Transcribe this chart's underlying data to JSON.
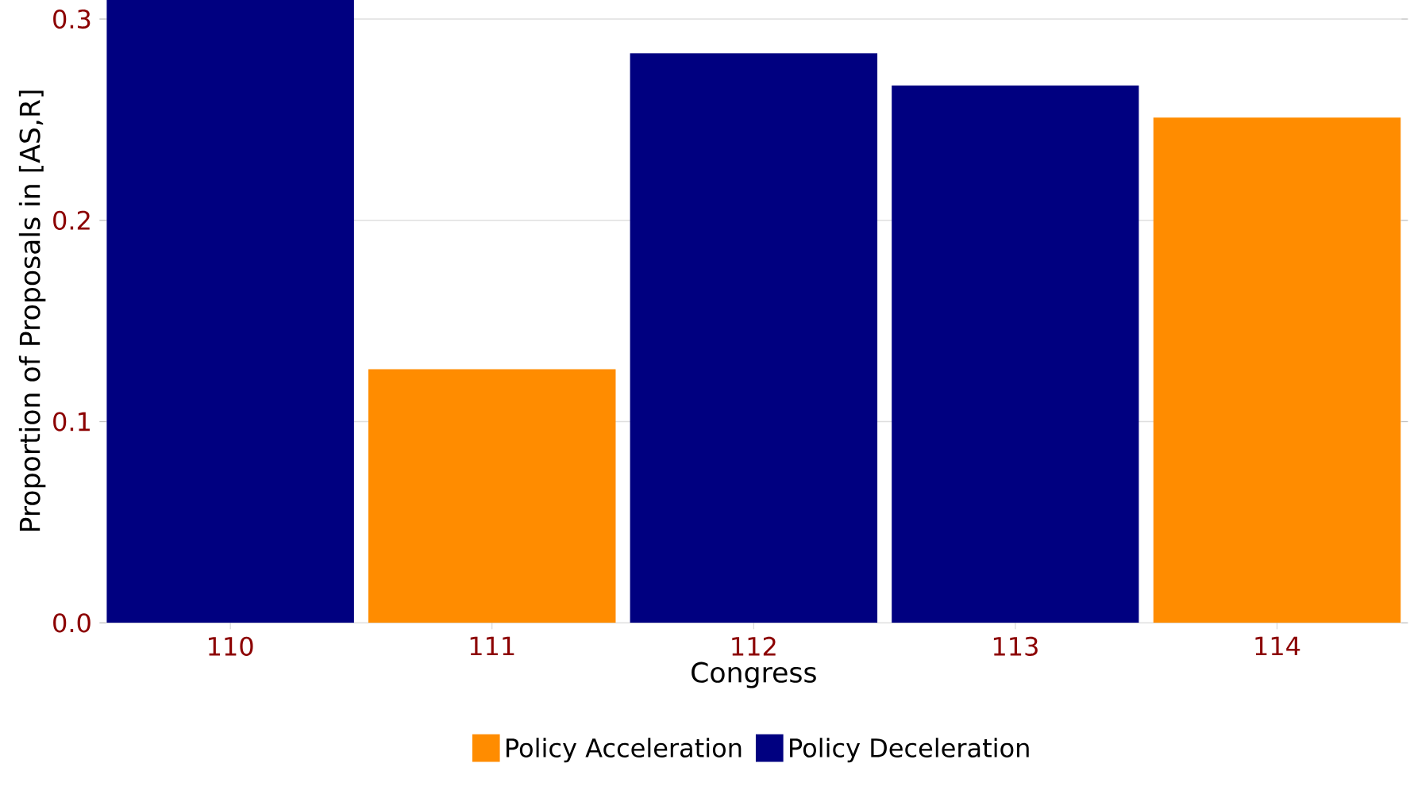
{
  "chart_data": {
    "type": "bar",
    "xlabel": "Congress",
    "ylabel": "Proportion of Proposals in [AS,R]",
    "categories": [
      "110",
      "111",
      "112",
      "113",
      "114"
    ],
    "series": [
      {
        "name": "Policy Acceleration",
        "color": "#ff8c00",
        "values": [
          null,
          0.126,
          null,
          null,
          0.251
        ]
      },
      {
        "name": "Policy Deceleration",
        "color": "#000080",
        "values": [
          0.31,
          null,
          0.283,
          0.267,
          null
        ]
      }
    ],
    "ylim": [
      0,
      0.31
    ],
    "yticks": [
      {
        "value": 0,
        "label": "0.0"
      },
      0.1,
      0.2,
      0.3
    ],
    "grid": "y",
    "legend": "bottom"
  }
}
